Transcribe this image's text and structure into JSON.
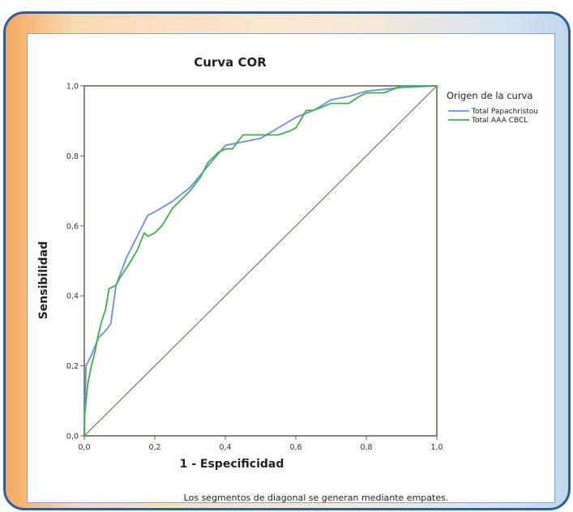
{
  "chart_data": {
    "type": "line",
    "title": "Curva COR",
    "xlabel": "1 - Especificidad",
    "ylabel": "Sensibilidad",
    "xlim": [
      0,
      1
    ],
    "ylim": [
      0,
      1
    ],
    "xticks": [
      "0,0",
      "0,2",
      "0,4",
      "0,6",
      "0,8",
      "1,0"
    ],
    "yticks": [
      "0,0",
      "0,2",
      "0,4",
      "0,6",
      "0,8",
      "1,0"
    ],
    "grid": false,
    "legend_title": "Origen de la curva",
    "legend_position": "right",
    "footnote": "Los segmentos de diagonal se generan mediante empates.",
    "series": [
      {
        "name": "Total Papachristou",
        "color": "#6b8fe6",
        "points": [
          [
            0,
            0
          ],
          [
            0.005,
            0.2
          ],
          [
            0.02,
            0.23
          ],
          [
            0.04,
            0.28
          ],
          [
            0.06,
            0.3
          ],
          [
            0.075,
            0.32
          ],
          [
            0.09,
            0.43
          ],
          [
            0.12,
            0.51
          ],
          [
            0.15,
            0.57
          ],
          [
            0.18,
            0.63
          ],
          [
            0.2,
            0.64
          ],
          [
            0.25,
            0.67
          ],
          [
            0.3,
            0.71
          ],
          [
            0.35,
            0.77
          ],
          [
            0.4,
            0.83
          ],
          [
            0.45,
            0.84
          ],
          [
            0.5,
            0.85
          ],
          [
            0.55,
            0.88
          ],
          [
            0.6,
            0.91
          ],
          [
            0.65,
            0.93
          ],
          [
            0.7,
            0.96
          ],
          [
            0.75,
            0.97
          ],
          [
            0.8,
            0.985
          ],
          [
            0.85,
            0.99
          ],
          [
            0.9,
            0.995
          ],
          [
            1,
            1
          ]
        ]
      },
      {
        "name": "Total AAA CBCL",
        "color": "#3cb04a",
        "points": [
          [
            0,
            0
          ],
          [
            0,
            0.05
          ],
          [
            0.005,
            0.1
          ],
          [
            0.01,
            0.15
          ],
          [
            0.02,
            0.2
          ],
          [
            0.03,
            0.24
          ],
          [
            0.04,
            0.29
          ],
          [
            0.05,
            0.33
          ],
          [
            0.06,
            0.36
          ],
          [
            0.07,
            0.42
          ],
          [
            0.09,
            0.43
          ],
          [
            0.1,
            0.45
          ],
          [
            0.12,
            0.48
          ],
          [
            0.15,
            0.53
          ],
          [
            0.17,
            0.58
          ],
          [
            0.18,
            0.57
          ],
          [
            0.2,
            0.58
          ],
          [
            0.22,
            0.6
          ],
          [
            0.25,
            0.65
          ],
          [
            0.28,
            0.68
          ],
          [
            0.3,
            0.7
          ],
          [
            0.33,
            0.74
          ],
          [
            0.35,
            0.78
          ],
          [
            0.38,
            0.81
          ],
          [
            0.4,
            0.82
          ],
          [
            0.42,
            0.82
          ],
          [
            0.45,
            0.86
          ],
          [
            0.5,
            0.86
          ],
          [
            0.55,
            0.86
          ],
          [
            0.58,
            0.87
          ],
          [
            0.6,
            0.88
          ],
          [
            0.63,
            0.93
          ],
          [
            0.65,
            0.93
          ],
          [
            0.7,
            0.95
          ],
          [
            0.75,
            0.95
          ],
          [
            0.78,
            0.97
          ],
          [
            0.8,
            0.98
          ],
          [
            0.85,
            0.98
          ],
          [
            0.9,
            1.0
          ],
          [
            1,
            1
          ]
        ]
      }
    ]
  }
}
